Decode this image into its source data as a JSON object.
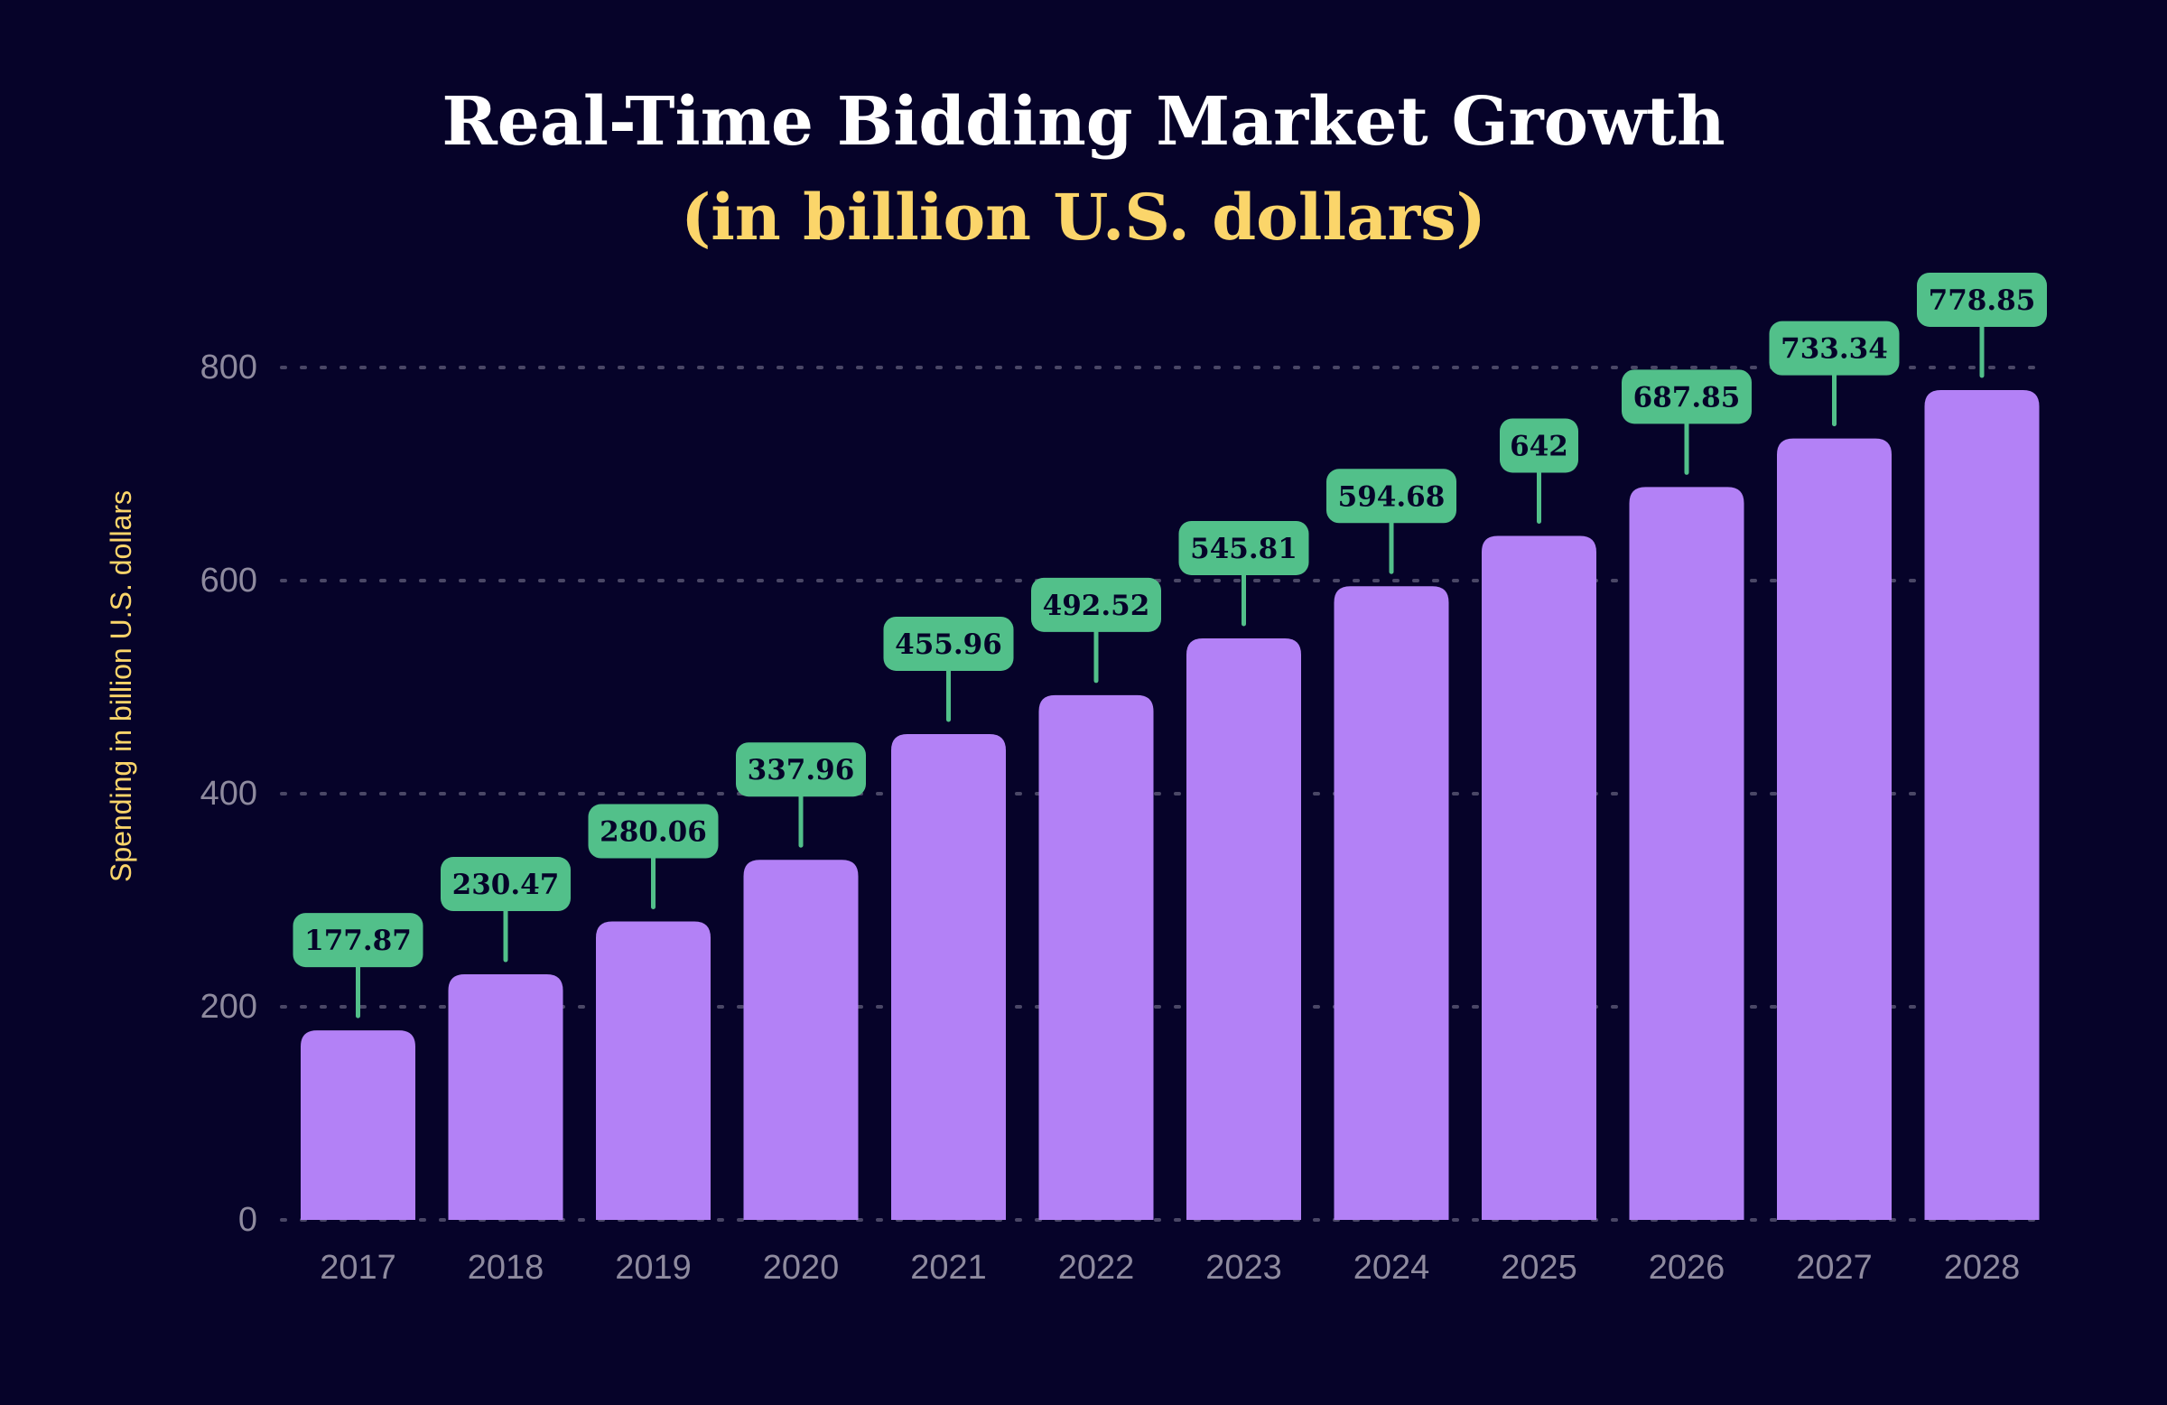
{
  "chart_data": {
    "type": "bar",
    "title": "Real-Time Bidding Market Growth",
    "subtitle": "(in billion U.S. dollars)",
    "xlabel": "",
    "ylabel": "Spending in billion U.S. dollars",
    "categories": [
      "2017",
      "2018",
      "2019",
      "2020",
      "2021",
      "2022",
      "2023",
      "2024",
      "2025",
      "2026",
      "2027",
      "2028"
    ],
    "values": [
      177.87,
      230.47,
      280.06,
      337.96,
      455.96,
      492.52,
      545.81,
      594.68,
      642,
      687.85,
      733.34,
      778.85
    ],
    "data_labels": [
      "177.87",
      "230.47",
      "280.06",
      "337.96",
      "455.96",
      "492.52",
      "545.81",
      "594.68",
      "642",
      "687.85",
      "733.34",
      "778.85"
    ],
    "ylim": [
      0,
      800
    ],
    "yticks": [
      "0",
      "200",
      "400",
      "600",
      "800"
    ],
    "grid": "horizontal dotted",
    "legend": "none",
    "colors": {
      "background": "#060329",
      "bar": "#b381f6",
      "label": "#52c08a",
      "title": "#ffffff",
      "subtitle": "#fbd56a",
      "tick": "#8e8a9e",
      "grid": "#4a4766"
    }
  }
}
